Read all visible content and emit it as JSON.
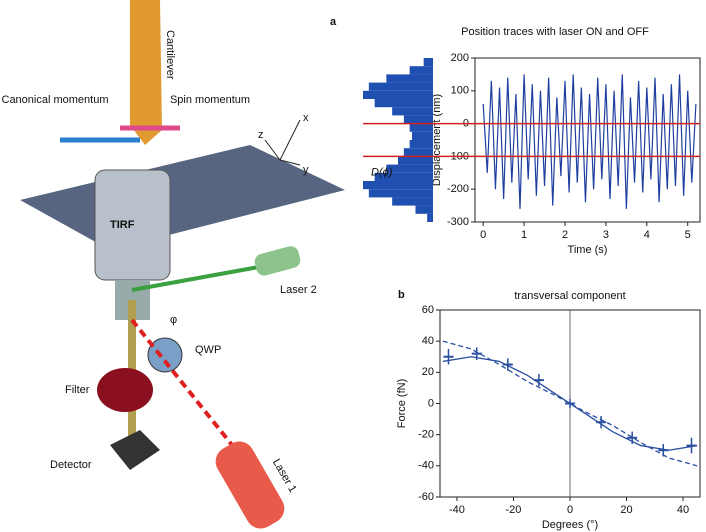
{
  "diagram": {
    "labels": {
      "cantilever": "Cantilever",
      "canonical": "Canonical momentum",
      "spin": "Spin momentum",
      "z": "z",
      "x": "x",
      "y": "y",
      "tirf": "TIRF",
      "laser2": "Laser 2",
      "phi": "φ",
      "qwp": "QWP",
      "filter": "Filter",
      "detector": "Detector",
      "laser1": "Laser 1"
    }
  },
  "chart_data": [
    {
      "type": "line",
      "panel": "a",
      "title": "Position traces with laser ON and OFF",
      "ylabel": "Displacement (nm)",
      "xlabel": "Time (s)",
      "side_label": "D(ϕ)",
      "color": "#1f3fa0",
      "x": [
        0,
        0.1,
        0.2,
        0.3,
        0.4,
        0.5,
        0.6,
        0.7,
        0.8,
        0.9,
        1,
        1.1,
        1.2,
        1.3,
        1.4,
        1.5,
        1.6,
        1.7,
        1.8,
        1.9,
        2,
        2.1,
        2.2,
        2.3,
        2.4,
        2.5,
        2.6,
        2.7,
        2.8,
        2.9,
        3,
        3.1,
        3.2,
        3.3,
        3.4,
        3.5,
        3.6,
        3.7,
        3.8,
        3.9,
        4,
        4.1,
        4.2,
        4.3,
        4.4,
        4.5,
        4.6,
        4.7,
        4.8,
        4.9,
        5,
        5.1,
        5.2
      ],
      "values": [
        60,
        -150,
        130,
        -200,
        110,
        -230,
        140,
        -180,
        90,
        -260,
        150,
        -170,
        120,
        -220,
        100,
        -190,
        140,
        -250,
        80,
        -160,
        130,
        -210,
        150,
        -180,
        110,
        -240,
        90,
        -200,
        140,
        -170,
        120,
        -230,
        100,
        -190,
        150,
        -260,
        80,
        -180,
        130,
        -210,
        110,
        -170,
        140,
        -240,
        90,
        -200,
        120,
        -190,
        150,
        -220,
        100,
        -180,
        60
      ],
      "xlim": [
        -0.2,
        5.3
      ],
      "ylim": [
        -300,
        200
      ],
      "xticks": [
        0,
        1,
        2,
        3,
        4,
        5
      ],
      "yticks": [
        -300,
        -200,
        -100,
        0,
        100,
        200
      ],
      "hlines": [
        0,
        -100
      ],
      "hline_color": "#d02020",
      "histogram": {
        "bins": [
          -300,
          -275,
          -250,
          -225,
          -200,
          -175,
          -150,
          -125,
          -100,
          -75,
          -50,
          -25,
          0,
          25,
          50,
          75,
          100,
          125,
          150,
          175,
          200
        ],
        "counts": [
          5,
          15,
          35,
          55,
          60,
          50,
          40,
          30,
          25,
          20,
          18,
          20,
          25,
          35,
          50,
          60,
          55,
          40,
          20,
          8
        ],
        "color": "#1f4fb0"
      }
    },
    {
      "type": "errorbar",
      "panel": "b",
      "title": "transversal component",
      "ylabel": "Force (fN)",
      "xlabel": "Degrees (°)",
      "color": "#2a4fa0",
      "x": [
        -43,
        -33,
        -22,
        -11,
        0,
        11,
        22,
        33,
        43
      ],
      "values": [
        30,
        32,
        25,
        15,
        0,
        -12,
        -22,
        -30,
        -27
      ],
      "errors": [
        5,
        4,
        4,
        4,
        3,
        4,
        4,
        4,
        5
      ],
      "fits": [
        {
          "style": "solid",
          "x": [
            -45,
            -35,
            -25,
            -15,
            -5,
            5,
            15,
            25,
            35,
            45
          ],
          "values": [
            27,
            30,
            27,
            18,
            6,
            -6,
            -18,
            -27,
            -30,
            -27
          ]
        },
        {
          "style": "dashed",
          "x": [
            -45,
            -35,
            -25,
            -15,
            -5,
            5,
            15,
            25,
            35,
            45
          ],
          "values": [
            40,
            35,
            25,
            14,
            5,
            -5,
            -14,
            -25,
            -35,
            -40
          ]
        }
      ],
      "xlim": [
        -46,
        46
      ],
      "ylim": [
        -60,
        60
      ],
      "xticks": [
        -40,
        -20,
        0,
        20,
        40
      ],
      "yticks": [
        -60,
        -40,
        -20,
        0,
        20,
        40,
        60
      ],
      "vlines": [
        0
      ]
    }
  ]
}
